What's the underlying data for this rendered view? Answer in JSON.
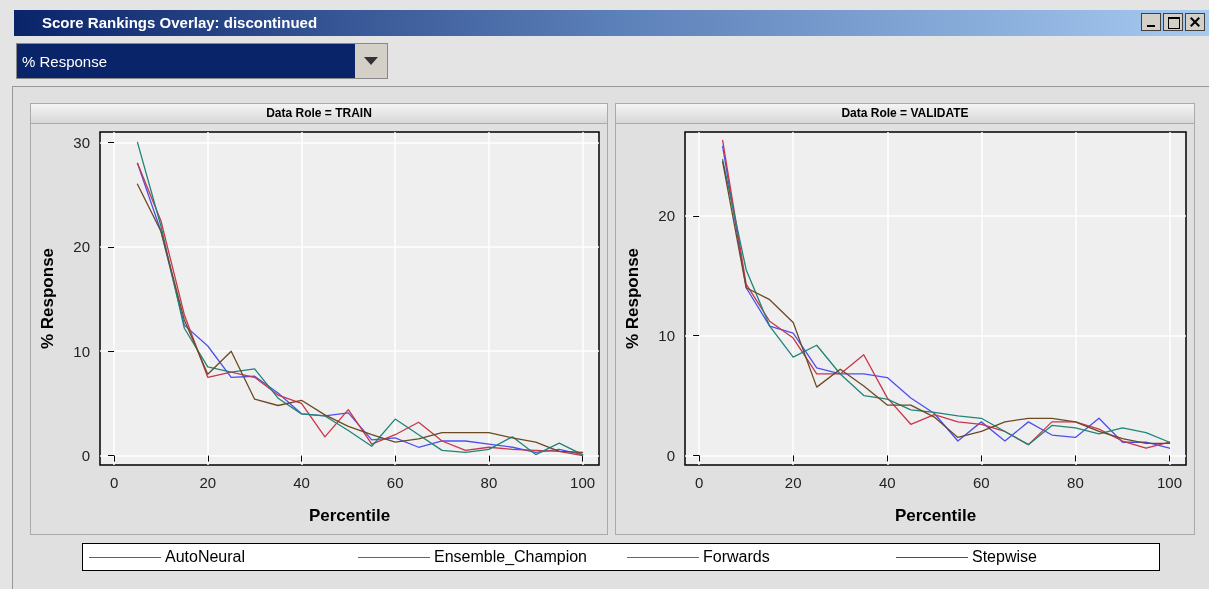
{
  "chart_data": [
    {
      "type": "line",
      "title": "Data Role = TRAIN",
      "xlabel": "Percentile",
      "ylabel": "% Response",
      "annotations": [
        "Score Rankings Overlay: discontinued",
        "% Response"
      ],
      "x": [
        5,
        10,
        15,
        20,
        25,
        30,
        35,
        40,
        45,
        50,
        55,
        60,
        65,
        70,
        75,
        80,
        85,
        90,
        95,
        100
      ],
      "series": [
        {
          "name": "AutoNeural",
          "color": "#4f4ff0",
          "values": [
            28,
            21.5,
            12.5,
            10.5,
            7.5,
            7.6,
            6,
            4,
            3.8,
            4.1,
            1.5,
            1.7,
            0.8,
            1.4,
            1.4,
            1.1,
            0.8,
            0.3,
            0.6,
            0.1
          ]
        },
        {
          "name": "Ensemble_Champion",
          "color": "#c8364a",
          "values": [
            28,
            22.5,
            13.5,
            7.5,
            8,
            7.5,
            5.8,
            5,
            1.8,
            4.4,
            1.1,
            2,
            3.2,
            1.4,
            0.5,
            0.8,
            0.6,
            0.5,
            0.4,
            0
          ]
        },
        {
          "name": "Forwards",
          "color": "#1f8577",
          "values": [
            30,
            22,
            12.2,
            8.5,
            8,
            8.3,
            5.5,
            4,
            3.8,
            2.4,
            0.9,
            3.5,
            2,
            0.5,
            0.3,
            0.6,
            1.8,
            0.1,
            1.2,
            0.1
          ]
        },
        {
          "name": "Stepwise",
          "color": "#6b4a24",
          "values": [
            26,
            21.5,
            13,
            7.8,
            10,
            5.4,
            4.8,
            5.3,
            3.9,
            2.8,
            2,
            1.3,
            1.6,
            2.2,
            2.2,
            2.2,
            1.7,
            1.3,
            0.4,
            0.3
          ]
        }
      ],
      "xlim": [
        -3,
        103.5
      ],
      "xticks": [
        0,
        20,
        40,
        60,
        80,
        100
      ],
      "ylim": [
        -0.9,
        31
      ],
      "yticks": [
        0,
        10,
        20,
        30
      ],
      "grid": true,
      "legend": "bottom",
      "line_style": "solid",
      "marker": "none"
    },
    {
      "type": "line",
      "title": "Data Role = VALIDATE",
      "xlabel": "Percentile",
      "ylabel": "% Response",
      "x": [
        5,
        10,
        15,
        20,
        25,
        30,
        35,
        40,
        45,
        50,
        55,
        60,
        65,
        70,
        75,
        80,
        85,
        90,
        95,
        100
      ],
      "series": [
        {
          "color": "#4f4ff0",
          "values": [
            25.8,
            14,
            10.8,
            10.2,
            7.3,
            6.8,
            6.8,
            6.5,
            4.8,
            3.5,
            1.2,
            2.8,
            1.2,
            2.8,
            1.7,
            1.5,
            3.1,
            1.1,
            1.1,
            0.6
          ]
        },
        {
          "color": "#c8364a",
          "values": [
            26.3,
            14.3,
            11.2,
            9.8,
            6.8,
            6.8,
            8.4,
            4.8,
            2.6,
            3.4,
            2.8,
            2.6,
            2,
            0.9,
            2.8,
            2.8,
            2.2,
            1.2,
            0.6,
            1.1
          ]
        },
        {
          "color": "#1f8577",
          "values": [
            24.7,
            15.5,
            10.8,
            8.2,
            9.2,
            6.8,
            5,
            4.7,
            3.8,
            3.6,
            3.3,
            3.1,
            2,
            0.9,
            2.5,
            2.3,
            1.8,
            2.3,
            1.9,
            1.1
          ]
        },
        {
          "color": "#6b4a24",
          "values": [
            24.5,
            14,
            13,
            11.1,
            5.7,
            7.2,
            5.8,
            4.2,
            4.2,
            3.2,
            1.5,
            2,
            2.8,
            3.1,
            3.1,
            2.8,
            2,
            1.4,
            1,
            1
          ]
        }
      ],
      "xlim": [
        -3,
        103.5
      ],
      "xticks": [
        0,
        20,
        40,
        60,
        80,
        100
      ],
      "ylim": [
        -0.8,
        27
      ],
      "yticks": [
        0,
        10,
        20
      ],
      "grid": true,
      "line_style": "solid",
      "marker": "none"
    }
  ]
}
